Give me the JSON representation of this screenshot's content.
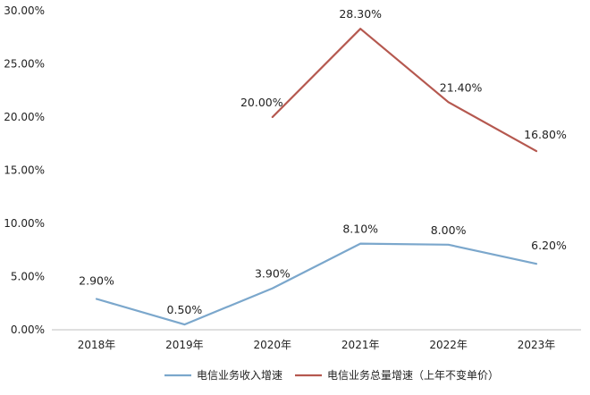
{
  "chart_data": {
    "type": "line",
    "categories": [
      "2018年",
      "2019年",
      "2020年",
      "2021年",
      "2022年",
      "2023年"
    ],
    "ylim": [
      0,
      30
    ],
    "y_ticks": [
      "0.00%",
      "5.00%",
      "10.00%",
      "15.00%",
      "20.00%",
      "25.00%",
      "30.00%"
    ],
    "grid": false,
    "legend_position": "bottom",
    "series": [
      {
        "name": "电信业务收入增速",
        "color": "#7ba7cc",
        "values": [
          2.9,
          0.5,
          3.9,
          8.1,
          8.0,
          6.2
        ],
        "labels": [
          "2.90%",
          "0.50%",
          "3.90%",
          "8.10%",
          "8.00%",
          "6.20%"
        ]
      },
      {
        "name": "电信业务总量增速（上年不变单价）",
        "color": "#b5584f",
        "values": [
          null,
          null,
          20.0,
          28.3,
          21.4,
          16.8
        ],
        "labels": [
          "",
          "",
          "20.00%",
          "28.30%",
          "21.40%",
          "16.80%"
        ]
      }
    ]
  }
}
